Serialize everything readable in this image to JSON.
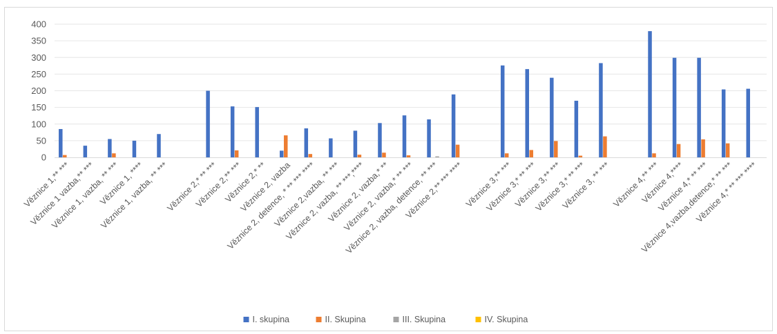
{
  "chart_data": {
    "type": "bar",
    "title": "",
    "xlabel": "",
    "ylabel": "",
    "ylim": [
      0,
      400
    ],
    "yticks": [
      0,
      50,
      100,
      150,
      200,
      250,
      300,
      350,
      400
    ],
    "grid": true,
    "legend_position": "bottom",
    "categories": [
      "Věznice 1,** ***",
      "Věznice 1 vazba,** ***",
      "Věznice 1, vazba, ** ***",
      "Věznice 1, ****",
      "Věznice 1, vazba, ** ***",
      "",
      "Věznice 2,* ** ***",
      "Věznice 2,** ***",
      "Věznice 2,* **",
      "Věznice 2, vazba",
      "Věznice 2, detence, * ** *** ****",
      "Věznice 2,vazba, ** ***",
      "Věznice 2, vazba, ** ***,****",
      "Věznice 2, vazba,* **",
      "Věznice 2, vazba,* ** ***",
      "Věznice 2, vazba, detence, ** ***",
      "Věznice 2,** *** ****",
      "",
      "Věznice 3,** ***",
      "Věznice 3,* ** ***",
      "Věznice 3,** ***",
      "Věznice 3,* ** ***",
      "Věznice 3, ** ***",
      "",
      "Věznice 4,** ***",
      "Věznice 4,****",
      "Věznice 4,* ** ***",
      "Věznice 4,vazba,detence,* ** ***",
      "Věznice 4,* ** *** ****"
    ],
    "series": [
      {
        "name": "I. skupina",
        "color": "#4472c4",
        "values": [
          85,
          35,
          55,
          50,
          70,
          0,
          200,
          153,
          151,
          20,
          87,
          57,
          80,
          103,
          126,
          114,
          189,
          0,
          276,
          265,
          239,
          170,
          283,
          0,
          379,
          299,
          299,
          204,
          206
        ]
      },
      {
        "name": "II. Skupina",
        "color": "#ed7d31",
        "values": [
          7,
          0,
          12,
          0,
          0,
          0,
          0,
          21,
          0,
          66,
          10,
          0,
          8,
          14,
          6,
          0,
          38,
          0,
          12,
          22,
          49,
          5,
          63,
          0,
          12,
          40,
          54,
          42,
          0
        ]
      },
      {
        "name": "III. Skupina",
        "color": "#a5a5a5",
        "values": [
          0,
          0,
          0,
          0,
          0,
          0,
          0,
          0,
          0,
          0,
          0,
          0,
          0,
          0,
          0,
          3,
          0,
          0,
          0,
          0,
          0,
          0,
          0,
          0,
          0,
          0,
          0,
          0,
          0
        ]
      },
      {
        "name": "IV. Skupina",
        "color": "#ffc000",
        "values": [
          0,
          0,
          0,
          0,
          0,
          0,
          0,
          0,
          0,
          0,
          0,
          0,
          0,
          0,
          0,
          0,
          0,
          0,
          0,
          0,
          0,
          0,
          0,
          0,
          0,
          0,
          0,
          0,
          0
        ]
      }
    ]
  }
}
